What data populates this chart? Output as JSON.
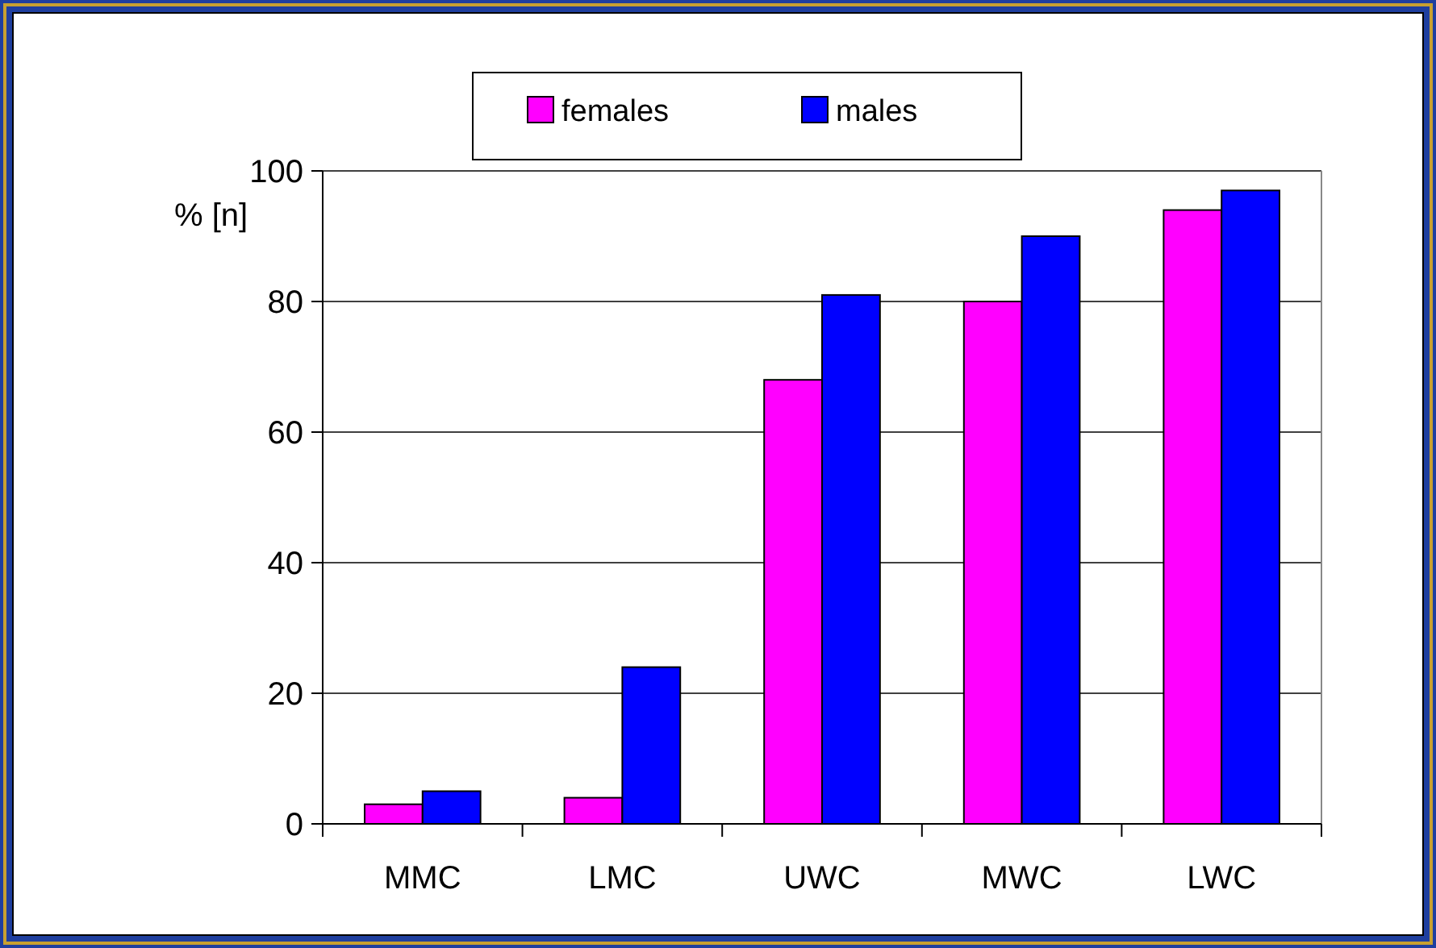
{
  "chart_data": {
    "type": "bar",
    "ylabel": "% [n]",
    "categories": [
      "MMC",
      "LMC",
      "UWC",
      "MWC",
      "LWC"
    ],
    "series": [
      {
        "name": "females",
        "color": "#ff00ff",
        "values": [
          3,
          4,
          68,
          80,
          94
        ]
      },
      {
        "name": "males",
        "color": "#0000ff",
        "values": [
          5,
          24,
          81,
          90,
          97
        ]
      }
    ],
    "ylim": [
      0,
      100
    ],
    "yticks": [
      0,
      20,
      40,
      60,
      80,
      100
    ],
    "grid": "y",
    "legend": "top"
  }
}
